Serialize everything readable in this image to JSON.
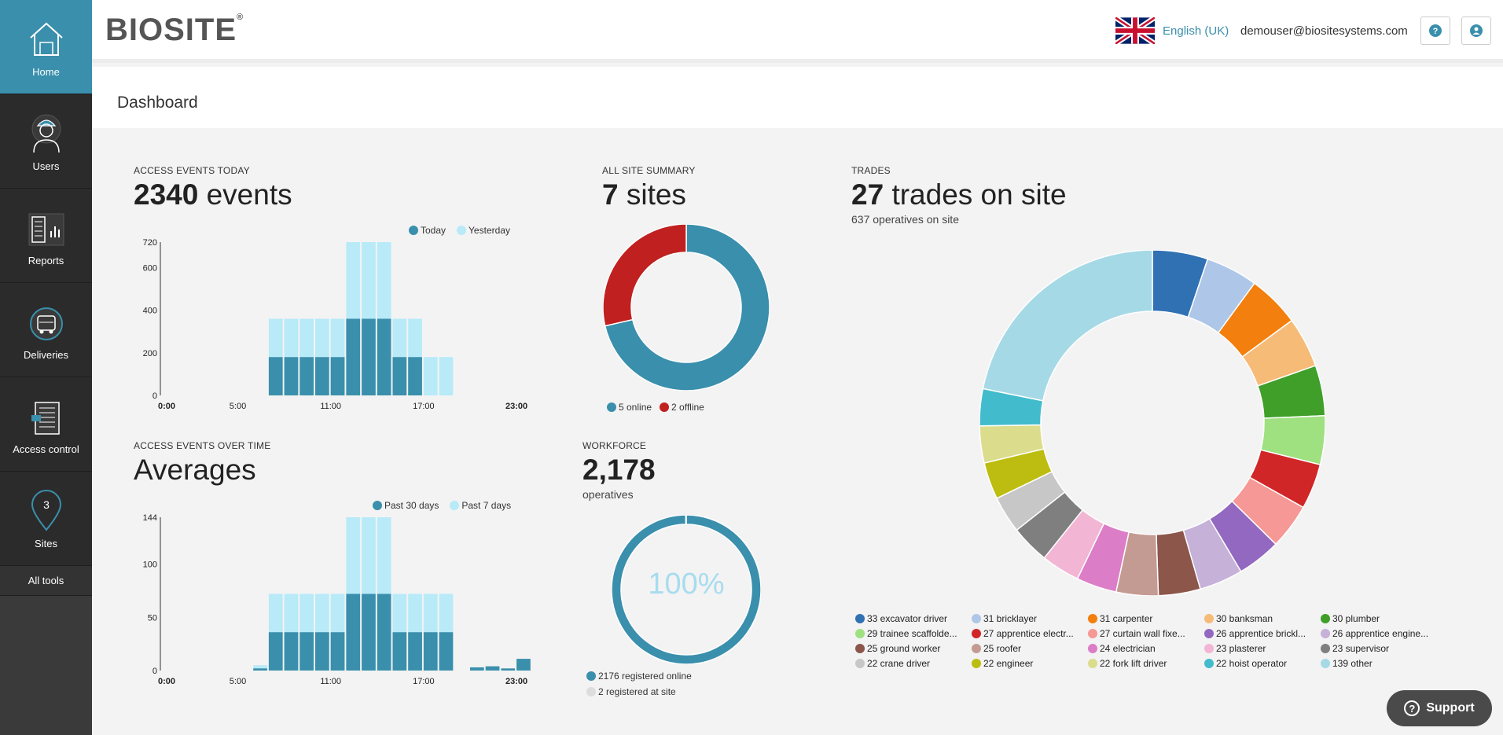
{
  "nav": {
    "home": "Home",
    "users": "Users",
    "reports": "Reports",
    "deliveries": "Deliveries",
    "access_control": "Access control",
    "sites": "Sites",
    "sites_badge": "3",
    "all_tools": "All tools"
  },
  "header": {
    "logo": "BIOSITE",
    "logo_mark": "®",
    "language": "English (UK)",
    "email": "demouser@biositesystems.com",
    "help_icon": "?"
  },
  "page_title": "Dashboard",
  "access_today": {
    "label": "ACCESS EVENTS TODAY",
    "count": "2340",
    "unit": "events",
    "legend": [
      "Today",
      "Yesterday"
    ]
  },
  "over_time": {
    "label": "ACCESS EVENTS OVER TIME",
    "heading": "Averages",
    "legend": [
      "Past 30 days",
      "Past 7 days"
    ]
  },
  "site_summary": {
    "label": "ALL SITE SUMMARY",
    "count": "7",
    "unit": "sites",
    "legend": [
      "5 online",
      "2 offline"
    ]
  },
  "workforce": {
    "label": "WORKFORCE",
    "count": "2,178",
    "unit": "operatives",
    "center_text": "100%",
    "legend": [
      "2176 registered online",
      "2 registered at site"
    ]
  },
  "trades": {
    "label": "TRADES",
    "count": "27",
    "unit": "trades on site",
    "operatives": "637 operatives on site"
  },
  "support": "Support",
  "chart_data": [
    {
      "type": "bar",
      "title": "ACCESS EVENTS TODAY",
      "x_ticks": [
        "0:00",
        "5:00",
        "11:00",
        "17:00",
        "23:00"
      ],
      "y_ticks": [
        0,
        200,
        400,
        600,
        720
      ],
      "ylim": [
        0,
        720
      ],
      "hours": [
        7,
        8,
        9,
        10,
        11,
        12,
        13,
        14,
        15,
        16,
        17,
        18
      ],
      "series": [
        {
          "name": "Today",
          "color": "#3a8fac",
          "values": [
            180,
            180,
            180,
            180,
            180,
            360,
            360,
            360,
            180,
            180,
            0,
            0
          ]
        },
        {
          "name": "Yesterday",
          "color": "#b8eaf8",
          "values": [
            360,
            360,
            360,
            360,
            360,
            720,
            720,
            720,
            360,
            360,
            180,
            180
          ]
        }
      ]
    },
    {
      "type": "bar",
      "title": "ACCESS EVENTS OVER TIME",
      "x_ticks": [
        "0:00",
        "5:00",
        "11:00",
        "17:00",
        "23:00"
      ],
      "y_ticks": [
        0,
        50,
        100,
        144
      ],
      "ylim": [
        0,
        144
      ],
      "hours": [
        6,
        7,
        8,
        9,
        10,
        11,
        12,
        13,
        14,
        15,
        16,
        17,
        18,
        20,
        21,
        22,
        23
      ],
      "series": [
        {
          "name": "Past 30 days",
          "color": "#3a8fac",
          "values": [
            2,
            36,
            36,
            36,
            36,
            36,
            72,
            72,
            72,
            36,
            36,
            36,
            36,
            3,
            4,
            2,
            11
          ]
        },
        {
          "name": "Past 7 days",
          "color": "#b8eaf8",
          "values": [
            5,
            72,
            72,
            72,
            72,
            72,
            144,
            144,
            144,
            72,
            72,
            72,
            72,
            0,
            0,
            0,
            0
          ]
        }
      ]
    },
    {
      "type": "pie",
      "title": "ALL SITE SUMMARY",
      "series": [
        {
          "name": "5 online",
          "value": 5,
          "color": "#3a8fac"
        },
        {
          "name": "2 offline",
          "value": 2,
          "color": "#c0201f"
        }
      ]
    },
    {
      "type": "pie",
      "title": "WORKFORCE",
      "series": [
        {
          "name": "2176 registered online",
          "value": 2176,
          "color": "#3a8fac"
        },
        {
          "name": "2 registered at site",
          "value": 2,
          "color": "#dddddd"
        }
      ]
    },
    {
      "type": "pie",
      "title": "TRADES",
      "series": [
        {
          "name": "33 excavator driver",
          "value": 33,
          "color": "#3071b4"
        },
        {
          "name": "31 bricklayer",
          "value": 31,
          "color": "#aec7e8"
        },
        {
          "name": "31 carpenter",
          "value": 31,
          "color": "#f27f0e"
        },
        {
          "name": "30 banksman",
          "value": 30,
          "color": "#f7bb78"
        },
        {
          "name": "30 plumber",
          "value": 30,
          "color": "#3f9f29"
        },
        {
          "name": "29 trainee scaffolde...",
          "value": 29,
          "color": "#9fe080"
        },
        {
          "name": "27 apprentice electr...",
          "value": 27,
          "color": "#d12627"
        },
        {
          "name": "27 curtain wall fixe...",
          "value": 27,
          "color": "#f59896"
        },
        {
          "name": "26 apprentice brickl...",
          "value": 26,
          "color": "#9268c0"
        },
        {
          "name": "26 apprentice engine...",
          "value": 26,
          "color": "#c6b1d8"
        },
        {
          "name": "25 ground worker",
          "value": 25,
          "color": "#8c564b"
        },
        {
          "name": "25 roofer",
          "value": 25,
          "color": "#c49b92"
        },
        {
          "name": "24 electrician",
          "value": 24,
          "color": "#dc7dc7"
        },
        {
          "name": "23 plasterer",
          "value": 23,
          "color": "#f2b6d4"
        },
        {
          "name": "23 supervisor",
          "value": 23,
          "color": "#7f7f7f"
        },
        {
          "name": "22 crane driver",
          "value": 22,
          "color": "#c7c7c7"
        },
        {
          "name": "22 engineer",
          "value": 22,
          "color": "#bcbd10"
        },
        {
          "name": "22 fork lift driver",
          "value": 22,
          "color": "#dcdc8d"
        },
        {
          "name": "22 hoist operator",
          "value": 22,
          "color": "#42bccc"
        },
        {
          "name": "139 other",
          "value": 139,
          "color": "#a6d9e6"
        }
      ]
    }
  ]
}
